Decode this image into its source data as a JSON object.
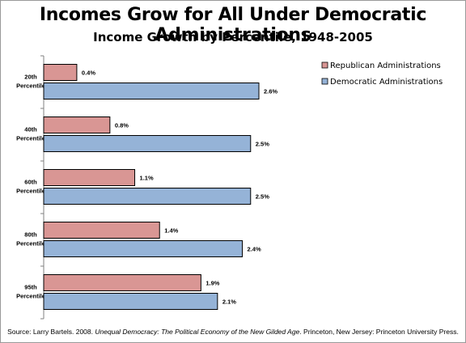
{
  "chart_data": {
    "type": "bar",
    "orientation": "horizontal",
    "title": "Incomes Grow for All Under Democratic Administrations",
    "subtitle": "Income Growth by Percentile, 1948-2005",
    "categories": [
      "20th Percentile",
      "40th Percentile",
      "60th Percentile",
      "80th Percentile",
      "95th Percentile"
    ],
    "category_lines": [
      [
        "20th",
        "Percentile"
      ],
      [
        "40th",
        "Percentile"
      ],
      [
        "60th",
        "Percentile"
      ],
      [
        "80th",
        "Percentile"
      ],
      [
        "95th",
        "Percentile"
      ]
    ],
    "series": [
      {
        "name": "Republican Administrations",
        "values": [
          0.4,
          0.8,
          1.1,
          1.4,
          1.9
        ],
        "labels": [
          "0.4%",
          "0.8%",
          "1.1%",
          "1.4%",
          "1.9%"
        ],
        "color": "#d99694"
      },
      {
        "name": "Democratic Administrations",
        "values": [
          2.6,
          2.5,
          2.5,
          2.4,
          2.1
        ],
        "labels": [
          "2.6%",
          "2.5%",
          "2.5%",
          "2.4%",
          "2.1%"
        ],
        "color": "#95b3d7"
      }
    ],
    "legend_position": "top-right",
    "grid": false,
    "xlim": [
      0,
      2.6
    ]
  },
  "source": {
    "prefix": "Source: Larry Bartels. 2008.",
    "book": "Unequal Democracy:  The Political Economy  of the New Gilded Age",
    "suffix": ". Princeton, New Jersey: Princeton University Press."
  }
}
